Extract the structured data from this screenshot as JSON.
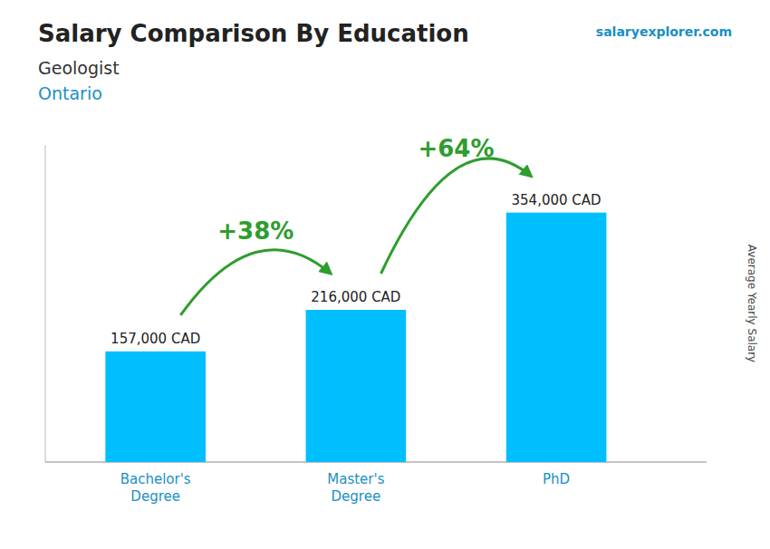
{
  "chart_data": {
    "type": "bar",
    "title": "Salary Comparison By Education",
    "subtitle": [
      "Geologist",
      "Ontario"
    ],
    "watermark": "salaryexplorer.com",
    "ylabel": "Average Yearly Salary",
    "categories": [
      "Bachelor's\nDegree",
      "Master's\nDegree",
      "PhD"
    ],
    "values": [
      157000,
      216000,
      354000
    ],
    "value_labels": [
      "157,000 CAD",
      "216,000 CAD",
      "354,000 CAD"
    ],
    "annotations": [
      "+38%",
      "+64%"
    ],
    "color": "#00BFFF",
    "ylim": [
      0,
      450000
    ],
    "grid": false,
    "data_labels": true,
    "tick_labels": "x"
  }
}
